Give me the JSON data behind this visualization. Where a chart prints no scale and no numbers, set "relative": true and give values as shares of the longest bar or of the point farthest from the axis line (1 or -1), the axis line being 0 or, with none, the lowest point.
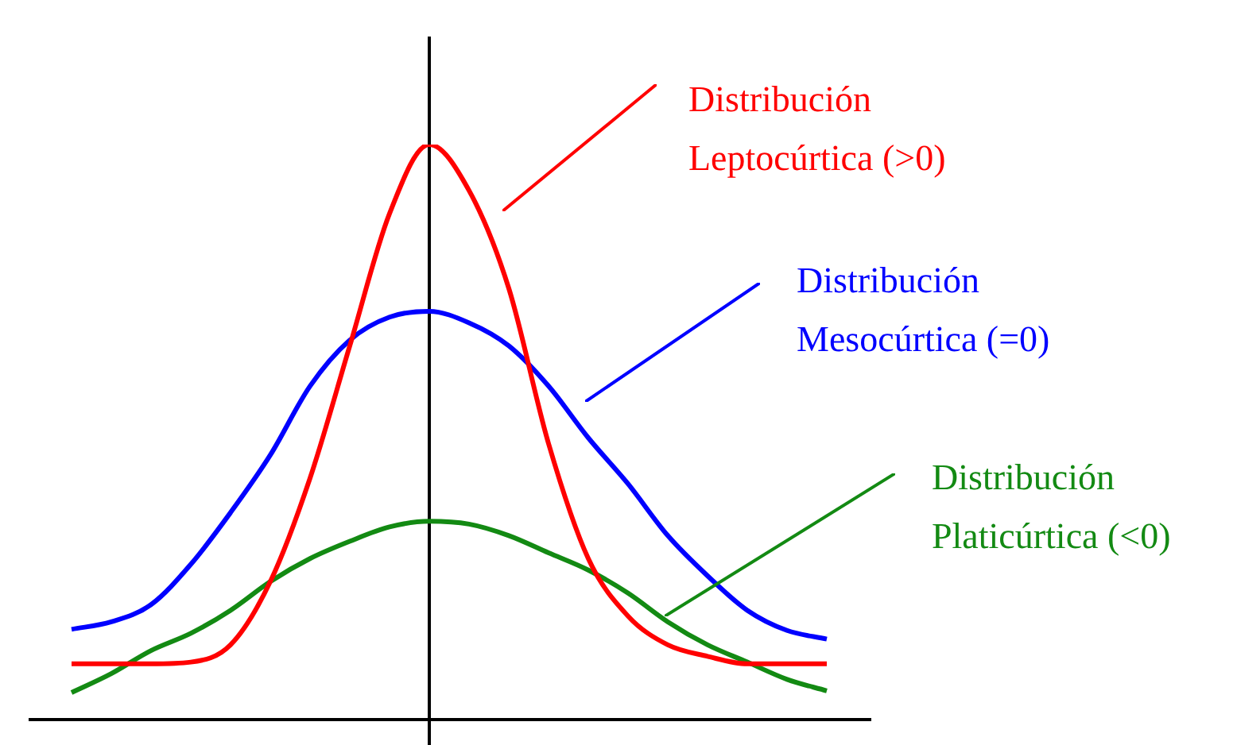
{
  "chart_data": {
    "type": "line",
    "relative": true,
    "marker": "none",
    "line_style": "solid",
    "categories": [
      null,
      null,
      null,
      null,
      null,
      null,
      null,
      null,
      null,
      null,
      null,
      null,
      null,
      null,
      null,
      null,
      null,
      null,
      null,
      null,
      null,
      null
    ],
    "series": [
      {
        "name": "Distribución Leptocúrtica (>0)",
        "color": "#ff0000",
        "values": [
          null,
          0.097,
          0.097,
          0.097,
          0.1,
          0.13,
          0.24,
          0.42,
          0.65,
          0.88,
          1,
          0.92,
          0.75,
          0.48,
          0.28,
          0.18,
          0.13,
          0.11,
          0.097,
          0.097,
          0.097,
          null
        ]
      },
      {
        "name": "Distribución Mesocúrtica (=0)",
        "color": "#0000ff",
        "values": [
          null,
          0.157,
          0.17,
          0.2,
          0.27,
          0.36,
          0.46,
          0.58,
          0.66,
          0.7,
          0.71,
          0.69,
          0.65,
          0.58,
          0.49,
          0.41,
          0.32,
          0.25,
          0.19,
          0.155,
          0.14,
          null
        ]
      },
      {
        "name": "Distribución Platicúrtica (<0)",
        "color": "#138a13",
        "values": [
          null,
          0.047,
          0.08,
          0.12,
          0.15,
          0.19,
          0.24,
          0.28,
          0.31,
          0.335,
          0.345,
          0.34,
          0.32,
          0.29,
          0.26,
          0.22,
          0.17,
          0.13,
          0.1,
          0.07,
          0.05,
          null
        ]
      }
    ]
  }
}
